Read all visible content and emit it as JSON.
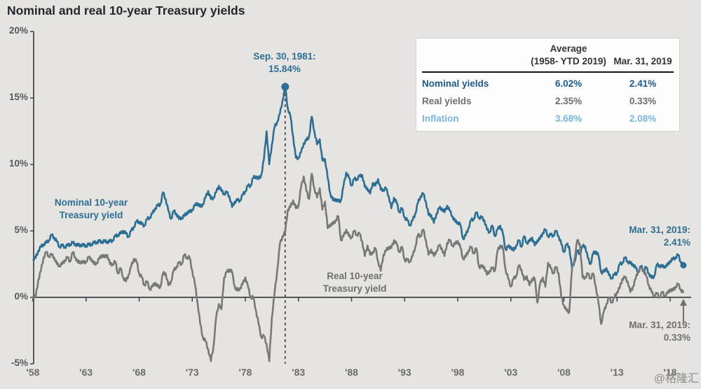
{
  "title": "Nominal and real 10-year Treasury yields",
  "watermark": "@格隆汇",
  "colors": {
    "background": "#e6e4e0",
    "nominal": "#2d6e95",
    "real": "#787878",
    "inflation": "#7ab6dc",
    "axis": "#3f4246",
    "dashed_line": "#5a5a5a",
    "arrow": "#6f6f6f",
    "table_nominal_text": "#1b5a8a"
  },
  "annotations": {
    "peak": "Sep. 30, 1981:\n15.84%",
    "nominal_label": "Nominal 10-year\nTreasury yield",
    "real_label": "Real 10-year\nTreasury yield",
    "nominal_end": "Mar. 31, 2019:\n2.41%",
    "real_end": "Mar. 31, 2019:\n0.33%"
  },
  "table": {
    "col_headers": [
      "Average\n(1958- YTD 2019)",
      "Mar. 31, 2019"
    ],
    "rows": [
      {
        "label": "Nominal yields",
        "avg": "6.02%",
        "current": "2.41%"
      },
      {
        "label": "Real yields",
        "avg": "2.35%",
        "current": "0.33%"
      },
      {
        "label": "Inflation",
        "avg": "3.68%",
        "current": "2.08%"
      }
    ]
  },
  "chart_data": {
    "type": "line",
    "title": "Nominal and real 10-year Treasury yields",
    "x_start": 1958,
    "x_step": 0.25,
    "xlim": [
      1958,
      2019.25
    ],
    "ylim": [
      -5,
      20
    ],
    "grid": false,
    "y_ticks": [
      "20%",
      "15%",
      "10%",
      "5%",
      "0%",
      "-5%"
    ],
    "y_tick_values": [
      20,
      15,
      10,
      5,
      0,
      -5
    ],
    "x_ticks": [
      "'58",
      "'63",
      "'68",
      "'73",
      "'78",
      "'83",
      "'88",
      "'93",
      "'98",
      "'03",
      "'08",
      "'13",
      "'18"
    ],
    "x_tick_values": [
      1958,
      1963,
      1968,
      1973,
      1978,
      1983,
      1988,
      1993,
      1998,
      2003,
      2008,
      2013,
      2018
    ],
    "peak_point": {
      "x": 1981.75,
      "y": 15.84,
      "label": "Sep. 30, 1981: 15.84%"
    },
    "end_points": {
      "nominal": 2.41,
      "real": 0.33,
      "date": "Mar. 31, 2019"
    },
    "series": [
      {
        "name": "Nominal 10-year Treasury yield",
        "values": [
          2.9,
          2.95,
          3.5,
          3.8,
          4.0,
          4.1,
          4.3,
          4.7,
          4.5,
          4.2,
          3.8,
          3.9,
          3.8,
          3.9,
          4.0,
          4.1,
          4.0,
          3.9,
          3.95,
          3.9,
          3.9,
          3.95,
          4.0,
          4.1,
          4.15,
          4.2,
          4.2,
          4.2,
          4.2,
          4.2,
          4.3,
          4.6,
          4.7,
          4.8,
          5.0,
          4.8,
          4.55,
          5.0,
          5.3,
          5.7,
          5.7,
          5.5,
          5.4,
          5.9,
          6.0,
          6.3,
          6.7,
          6.9,
          7.0,
          7.9,
          7.4,
          6.5,
          5.9,
          6.5,
          6.3,
          5.9,
          6.0,
          6.1,
          6.4,
          6.4,
          6.6,
          6.9,
          7.1,
          6.8,
          7.0,
          7.5,
          8.0,
          7.4,
          7.5,
          7.9,
          8.4,
          8.0,
          7.8,
          7.9,
          7.6,
          6.8,
          7.2,
          7.3,
          7.3,
          7.7,
          8.0,
          8.4,
          8.4,
          9.0,
          9.1,
          8.9,
          9.2,
          10.4,
          12.5,
          10.0,
          11.5,
          12.8,
          13.2,
          13.8,
          14.8,
          15.84,
          14.2,
          13.6,
          12.1,
          10.5,
          10.5,
          10.9,
          11.6,
          11.8,
          12.1,
          13.6,
          12.5,
          11.5,
          11.9,
          10.3,
          10.4,
          9.0,
          7.8,
          7.3,
          7.4,
          7.2,
          7.3,
          8.4,
          9.4,
          9.0,
          8.4,
          8.9,
          8.9,
          9.1,
          9.2,
          8.3,
          8.2,
          7.8,
          8.6,
          8.4,
          8.9,
          8.1,
          8.1,
          8.2,
          7.6,
          6.7,
          7.5,
          7.1,
          6.4,
          6.7,
          6.0,
          5.8,
          5.4,
          5.8,
          6.3,
          7.1,
          7.6,
          7.8,
          7.2,
          6.2,
          6.2,
          5.6,
          6.3,
          6.7,
          6.7,
          6.4,
          6.9,
          6.5,
          6.1,
          5.7,
          5.65,
          5.45,
          4.4,
          4.65,
          5.2,
          5.8,
          5.9,
          6.4,
          6.0,
          6.0,
          5.8,
          5.1,
          4.9,
          5.4,
          4.6,
          5.1,
          5.4,
          4.8,
          3.6,
          3.8,
          3.8,
          3.5,
          3.9,
          4.3,
          3.8,
          4.6,
          4.1,
          4.2,
          4.5,
          3.9,
          4.3,
          4.4,
          4.85,
          5.1,
          4.6,
          4.7,
          4.65,
          5.0,
          4.6,
          4.0,
          3.4,
          4.0,
          3.8,
          2.2,
          2.7,
          3.5,
          3.3,
          3.85,
          3.85,
          2.95,
          2.5,
          3.3,
          3.45,
          3.15,
          1.9,
          1.9,
          2.2,
          1.65,
          1.45,
          1.7,
          1.85,
          2.5,
          2.6,
          3.0,
          2.7,
          2.55,
          2.5,
          2.2,
          1.9,
          2.35,
          2.05,
          2.25,
          1.8,
          1.45,
          1.6,
          2.45,
          2.4,
          2.3,
          2.35,
          2.4,
          2.75,
          2.85,
          3.0,
          3.2,
          2.68,
          2.41
        ]
      },
      {
        "name": "Real 10-year Treasury yield",
        "values": [
          0.1,
          0.0,
          1.3,
          2.0,
          3.0,
          3.4,
          3.1,
          3.2,
          3.0,
          2.5,
          2.4,
          2.5,
          2.8,
          3.0,
          2.7,
          3.4,
          3.0,
          2.6,
          2.7,
          2.6,
          2.7,
          3.0,
          2.9,
          2.5,
          2.6,
          2.9,
          3.2,
          3.0,
          3.2,
          2.5,
          2.5,
          2.7,
          1.8,
          2.2,
          1.5,
          1.2,
          1.7,
          2.3,
          2.9,
          2.7,
          1.8,
          1.5,
          0.9,
          1.2,
          0.6,
          0.8,
          1.1,
          0.8,
          0.8,
          1.8,
          1.8,
          0.9,
          1.2,
          2.0,
          2.3,
          2.6,
          2.5,
          3.2,
          3.0,
          3.0,
          2.0,
          1.0,
          -0.4,
          -2.0,
          -3.0,
          -3.3,
          -3.9,
          -4.8,
          -3.7,
          -1.5,
          -0.5,
          -0.9,
          1.5,
          1.9,
          2.1,
          1.9,
          0.8,
          0.5,
          0.7,
          1.0,
          1.5,
          0.8,
          0.0,
          0.0,
          -1.0,
          -2.0,
          -3.0,
          -2.9,
          -3.5,
          -4.8,
          -1.5,
          0.3,
          2.0,
          4.0,
          4.6,
          4.9,
          6.6,
          6.8,
          7.3,
          6.7,
          6.9,
          8.3,
          9.1,
          8.0,
          7.4,
          9.3,
          8.2,
          7.5,
          8.2,
          6.6,
          7.2,
          5.2,
          5.5,
          5.5,
          5.8,
          6.1,
          4.3,
          4.6,
          5.1,
          4.6,
          4.5,
          5.0,
          4.7,
          4.8,
          4.2,
          3.1,
          3.9,
          3.2,
          3.4,
          3.7,
          2.7,
          2.0,
          3.2,
          3.5,
          3.8,
          3.7,
          4.3,
          4.0,
          3.4,
          3.8,
          2.8,
          2.8,
          2.7,
          3.1,
          3.8,
          4.7,
          4.6,
          5.1,
          4.3,
          3.2,
          3.6,
          3.1,
          3.5,
          3.9,
          3.7,
          3.1,
          4.1,
          4.3,
          3.9,
          4.0,
          4.25,
          3.75,
          2.9,
          3.05,
          3.5,
          3.8,
          3.3,
          3.7,
          2.3,
          2.3,
          2.3,
          1.7,
          2.0,
          2.2,
          2.0,
          3.5,
          3.9,
          3.7,
          2.1,
          1.4,
          0.8,
          1.4,
          1.6,
          2.4,
          2.1,
          1.3,
          1.6,
          0.9,
          1.4,
          1.4,
          -0.4,
          1.0,
          1.5,
          0.8,
          2.6,
          2.2,
          1.8,
          2.3,
          1.8,
          0.0,
          -0.6,
          -1.0,
          -1.1,
          2.1,
          2.9,
          4.3,
          4.0,
          1.5,
          1.5,
          1.8,
          1.4,
          1.8,
          0.8,
          -0.4,
          -2.0,
          -1.1,
          -0.5,
          0.0,
          -0.4,
          0.0,
          0.4,
          0.7,
          1.4,
          1.5,
          1.2,
          0.4,
          0.8,
          1.4,
          2.0,
          2.2,
          2.0,
          1.6,
          0.9,
          0.4,
          0.1,
          0.3,
          0.0,
          0.4,
          0.1,
          0.3,
          0.6,
          0.5,
          0.8,
          1.0,
          0.6,
          0.33
        ]
      }
    ]
  }
}
